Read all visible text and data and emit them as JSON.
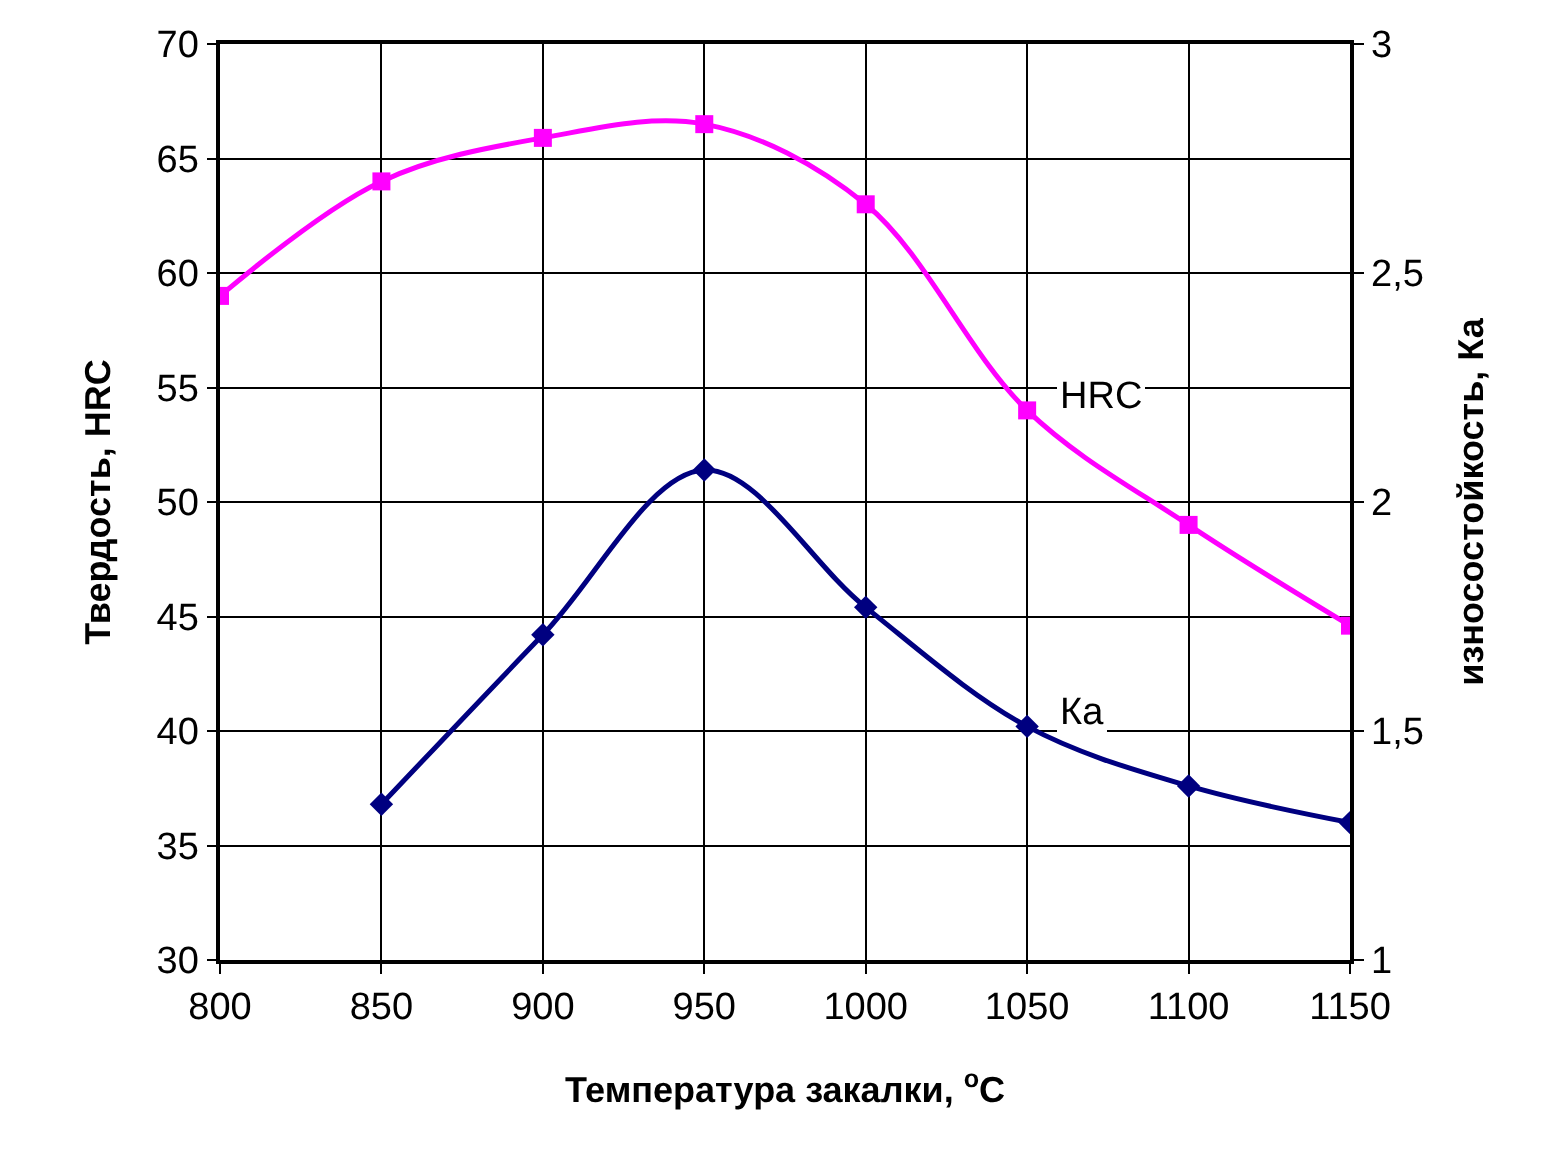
{
  "chart_data": {
    "type": "line",
    "xlabel": "Температура закалки, $^{o}$C",
    "ylabel": "Твердость, HRC",
    "y2label": "износостойкость, Ка",
    "x": [
      800,
      850,
      900,
      950,
      1000,
      1050,
      1100,
      1150
    ],
    "series": [
      {
        "name": "HRC",
        "color": "#ff00ff",
        "marker": "square",
        "values": [
          59.0,
          64.0,
          65.9,
          66.5,
          63.0,
          54.0,
          49.0,
          44.6
        ]
      },
      {
        "name": "Ка",
        "color": "#000080",
        "marker": "diamond",
        "axis": "y2",
        "values": [
          null,
          1.34,
          1.71,
          2.07,
          1.77,
          1.51,
          1.38,
          1.3
        ]
      }
    ],
    "xlim": [
      800,
      1150
    ],
    "xticks": [
      800,
      850,
      900,
      950,
      1000,
      1050,
      1100,
      1150
    ],
    "ylim": [
      30,
      70
    ],
    "yticks": [
      30,
      35,
      40,
      45,
      50,
      55,
      60,
      65,
      70
    ],
    "y2lim": [
      1,
      3
    ],
    "y2ticks": [
      1,
      {
        "value": 1.5,
        "label": "1,5"
      },
      2,
      {
        "value": 2.5,
        "label": "2,5"
      },
      3
    ],
    "grid": true,
    "legend": false
  }
}
